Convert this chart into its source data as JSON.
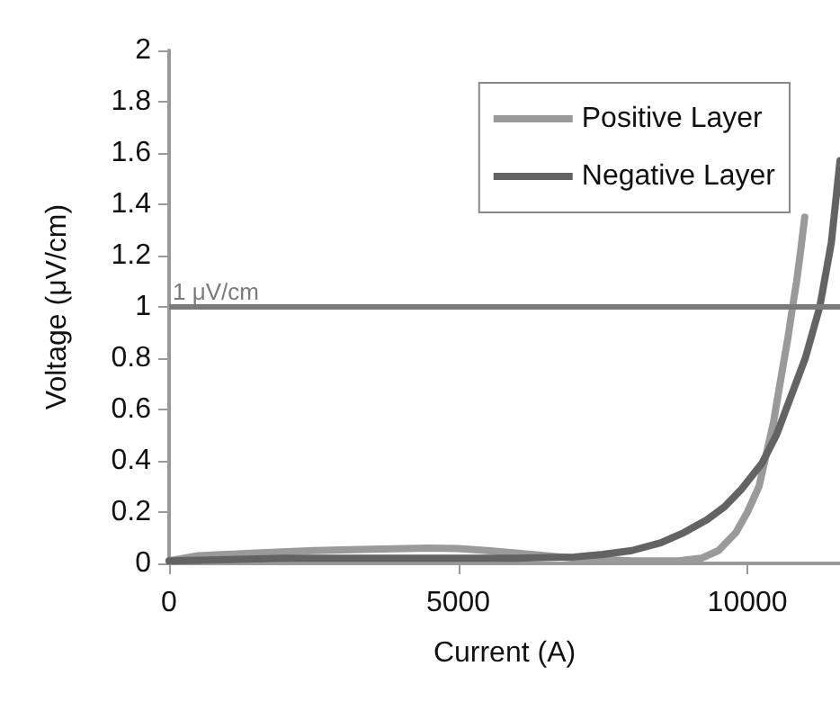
{
  "chart_data": {
    "type": "line",
    "xlabel": "Current (A)",
    "ylabel": "Voltage (μV/cm)",
    "xlim": [
      0,
      11600
    ],
    "ylim": [
      0,
      2
    ],
    "xticks": [
      0,
      5000,
      10000
    ],
    "yticks": [
      0,
      0.2,
      0.4,
      0.6,
      0.8,
      1,
      1.2,
      1.4,
      1.6,
      1.8,
      2
    ],
    "grid": false,
    "legend": "top right",
    "marker": "none",
    "line_style": "solid",
    "ref_lines": [
      {
        "axis": "y",
        "value": 1,
        "label": "1 μV/cm",
        "color": "#7a7a7a"
      }
    ],
    "series": [
      {
        "name": "Positive Layer",
        "color": "#9a9a9a",
        "x": [
          0,
          500,
          1500,
          2500,
          3500,
          4500,
          5000,
          5500,
          6000,
          7000,
          8000,
          8800,
          9200,
          9500,
          9800,
          10000,
          10200,
          10300,
          10450,
          10600,
          10700,
          10780,
          10850,
          10920,
          10990
        ],
        "values": [
          0.01,
          0.03,
          0.04,
          0.05,
          0.055,
          0.06,
          0.058,
          0.05,
          0.04,
          0.02,
          0.01,
          0.01,
          0.02,
          0.05,
          0.12,
          0.2,
          0.3,
          0.4,
          0.55,
          0.75,
          0.88,
          1.0,
          1.1,
          1.22,
          1.35
        ]
      },
      {
        "name": "Negative Layer",
        "color": "#636363",
        "x": [
          0,
          1000,
          2000,
          3000,
          4000,
          5000,
          6000,
          7000,
          7500,
          8000,
          8500,
          8900,
          9300,
          9600,
          9900,
          10250,
          10500,
          10750,
          11000,
          11250,
          11450,
          11600
        ],
        "values": [
          0.01,
          0.015,
          0.02,
          0.02,
          0.02,
          0.02,
          0.02,
          0.025,
          0.035,
          0.05,
          0.08,
          0.12,
          0.17,
          0.22,
          0.29,
          0.39,
          0.5,
          0.65,
          0.8,
          1.0,
          1.25,
          1.57
        ]
      }
    ]
  }
}
